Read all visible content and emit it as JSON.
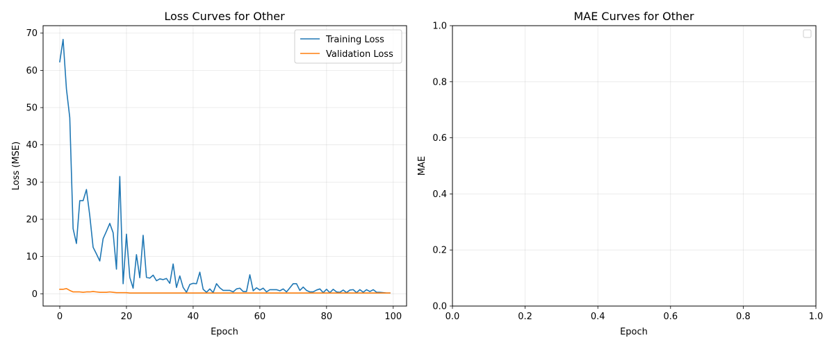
{
  "chart_data": [
    {
      "type": "line",
      "title": "Loss Curves for Other",
      "xlabel": "Epoch",
      "ylabel": "Loss (MSE)",
      "xlim": [
        -5,
        104
      ],
      "ylim": [
        -3.3,
        72
      ],
      "xticks": [
        0,
        20,
        40,
        60,
        80,
        100
      ],
      "yticks": [
        0,
        10,
        20,
        30,
        40,
        50,
        60,
        70
      ],
      "grid": true,
      "legend_position": "top-right",
      "series": [
        {
          "name": "Training Loss",
          "color": "#1f77b4",
          "x": [
            0,
            1,
            2,
            3,
            4,
            5,
            6,
            7,
            8,
            9,
            10,
            11,
            12,
            13,
            14,
            15,
            16,
            17,
            18,
            19,
            20,
            21,
            22,
            23,
            24,
            25,
            26,
            27,
            28,
            29,
            30,
            31,
            32,
            33,
            34,
            35,
            36,
            37,
            38,
            39,
            40,
            41,
            42,
            43,
            44,
            45,
            46,
            47,
            48,
            49,
            50,
            51,
            52,
            53,
            54,
            55,
            56,
            57,
            58,
            59,
            60,
            61,
            62,
            63,
            64,
            65,
            66,
            67,
            68,
            69,
            70,
            71,
            72,
            73,
            74,
            75,
            76,
            77,
            78,
            79,
            80,
            81,
            82,
            83,
            84,
            85,
            86,
            87,
            88,
            89,
            90,
            91,
            92,
            93,
            94,
            95,
            96,
            97,
            98,
            99
          ],
          "values": [
            62.3,
            68.3,
            55,
            47.3,
            17.5,
            13.5,
            25,
            25,
            28,
            21,
            12.5,
            10.7,
            8.8,
            14.8,
            16.8,
            18.9,
            16.4,
            6.6,
            31.5,
            2.7,
            16,
            4.4,
            1.5,
            10.5,
            4.3,
            15.7,
            4.4,
            4.2,
            5,
            3.5,
            4,
            3.8,
            4.1,
            2.8,
            8,
            1.7,
            4.8,
            1.7,
            0.4,
            2.5,
            2.8,
            2.7,
            5.8,
            1.2,
            0.4,
            1.3,
            0.3,
            2.7,
            1.6,
            0.9,
            0.9,
            0.9,
            0.5,
            1.3,
            1.5,
            0.6,
            0.6,
            5.1,
            0.8,
            1.6,
            1,
            1.5,
            0.5,
            1.1,
            1.1,
            1.1,
            0.8,
            1.3,
            0.5,
            1.6,
            2.7,
            2.7,
            0.9,
            1.8,
            0.9,
            0.5,
            0.5,
            1,
            1.3,
            0.3,
            1.2,
            0.3,
            1.2,
            0.5,
            0.4,
            1,
            0.3,
            1,
            1.1,
            0.3,
            1.1,
            0.4,
            1.1,
            0.6,
            1.1,
            0.4,
            0.4,
            0.3,
            0.2,
            0.2
          ]
        },
        {
          "name": "Validation Loss",
          "color": "#ff7f0e",
          "x": [
            0,
            1,
            2,
            3,
            4,
            5,
            6,
            7,
            8,
            9,
            10,
            11,
            12,
            13,
            14,
            15,
            16,
            17,
            18,
            19,
            20,
            21,
            22,
            23,
            24,
            25,
            26,
            27,
            28,
            29,
            30,
            31,
            32,
            33,
            34,
            35,
            36,
            37,
            38,
            39,
            40,
            41,
            42,
            43,
            44,
            45,
            46,
            47,
            48,
            49,
            50,
            51,
            52,
            53,
            54,
            55,
            56,
            57,
            58,
            59,
            60,
            61,
            62,
            63,
            64,
            65,
            66,
            67,
            68,
            69,
            70,
            71,
            72,
            73,
            74,
            75,
            76,
            77,
            78,
            79,
            80,
            81,
            82,
            83,
            84,
            85,
            86,
            87,
            88,
            89,
            90,
            91,
            92,
            93,
            94,
            95,
            96,
            97,
            98,
            99
          ],
          "values": [
            1.2,
            1.2,
            1.4,
            0.9,
            0.5,
            0.5,
            0.5,
            0.4,
            0.5,
            0.5,
            0.6,
            0.5,
            0.4,
            0.4,
            0.4,
            0.5,
            0.4,
            0.3,
            0.3,
            0.3,
            0.3,
            0.2,
            0.2,
            0.2,
            0.2,
            0.2,
            0.2,
            0.2,
            0.2,
            0.2,
            0.2,
            0.2,
            0.2,
            0.2,
            0.2,
            0.2,
            0.2,
            0.2,
            0.2,
            0.2,
            0.2,
            0.2,
            0.2,
            0.2,
            0.2,
            0.2,
            0.2,
            0.2,
            0.2,
            0.2,
            0.2,
            0.2,
            0.2,
            0.2,
            0.2,
            0.2,
            0.2,
            0.2,
            0.2,
            0.2,
            0.2,
            0.2,
            0.2,
            0.2,
            0.2,
            0.2,
            0.2,
            0.2,
            0.2,
            0.2,
            0.2,
            0.2,
            0.2,
            0.2,
            0.2,
            0.2,
            0.2,
            0.2,
            0.2,
            0.2,
            0.2,
            0.2,
            0.2,
            0.2,
            0.2,
            0.2,
            0.2,
            0.2,
            0.2,
            0.2,
            0.2,
            0.2,
            0.2,
            0.2,
            0.2,
            0.2,
            0.2,
            0.2,
            0.2,
            0.2
          ]
        }
      ]
    },
    {
      "type": "line",
      "title": "MAE Curves for Other",
      "xlabel": "Epoch",
      "ylabel": "MAE",
      "xlim": [
        0,
        1
      ],
      "ylim": [
        0,
        1
      ],
      "xticks": [
        0,
        0.2,
        0.4,
        0.6,
        0.8,
        1
      ],
      "xtick_labels": [
        "0.0",
        "0.2",
        "0.4",
        "0.6",
        "0.8",
        "1.0"
      ],
      "yticks": [
        0,
        0.2,
        0.4,
        0.6,
        0.8,
        1
      ],
      "ytick_labels": [
        "0.0",
        "0.2",
        "0.4",
        "0.6",
        "0.8",
        "1.0"
      ],
      "grid": true,
      "legend_position": "top-right",
      "series": []
    }
  ]
}
